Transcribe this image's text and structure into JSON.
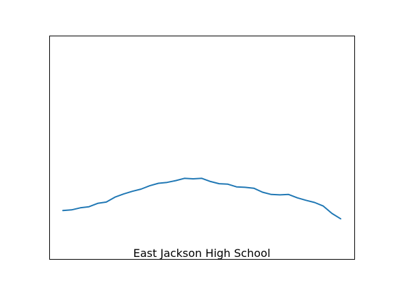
{
  "chart_data": {
    "type": "line",
    "title": "East Jackson High School",
    "xlabel": "",
    "ylabel": "",
    "grid": false,
    "axes_visible": false,
    "xlim": [
      0,
      34
    ],
    "ylim": [
      0,
      100
    ],
    "x": [
      0,
      1,
      2,
      3,
      4,
      5,
      6,
      7,
      8,
      9,
      10,
      11,
      12,
      13,
      14,
      15,
      16,
      17,
      18,
      19,
      20,
      21,
      22,
      23,
      24,
      25,
      26,
      27,
      28,
      29,
      30,
      31,
      32,
      33,
      34
    ],
    "series": [
      {
        "color": "#1f77b4",
        "values": [
          21.7,
          22.0,
          22.9,
          23.4,
          24.9,
          25.5,
          27.7,
          29.1,
          30.3,
          31.3,
          32.8,
          33.9,
          34.3,
          35.1,
          36.1,
          35.9,
          36.1,
          34.7,
          33.7,
          33.5,
          32.3,
          32.1,
          31.7,
          29.9,
          28.9,
          28.7,
          28.9,
          27.4,
          26.3,
          25.3,
          23.7,
          20.4,
          18.0,
          null,
          null
        ]
      }
    ]
  }
}
